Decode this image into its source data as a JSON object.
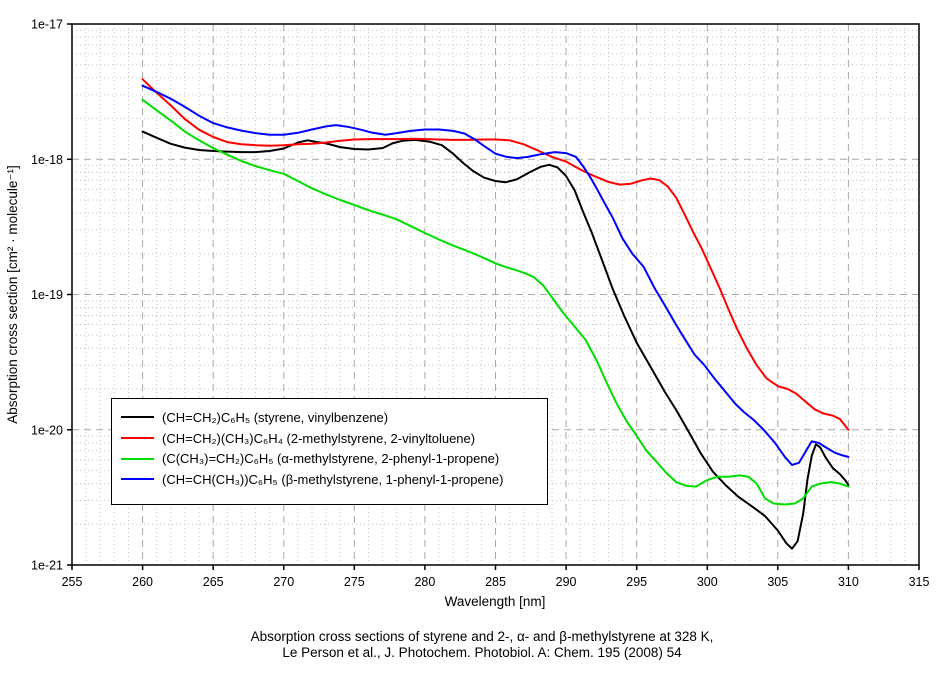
{
  "chart_data": {
    "type": "line",
    "title": "",
    "xlabel": "Wavelength [nm]",
    "ylabel": "Absorption cross section [cm² · molecule⁻¹]",
    "xlim": [
      255,
      315
    ],
    "ylim_exp": [
      -21,
      -17
    ],
    "x_ticks": [
      255,
      260,
      265,
      270,
      275,
      280,
      285,
      290,
      295,
      300,
      305,
      310,
      315
    ],
    "y_ticks": [
      "1e-17",
      "1e-18",
      "1e-19",
      "1e-20",
      "1e-21"
    ],
    "x_minor_step": 1,
    "grid": true,
    "legend_position": "lower-left",
    "grid_minor_color": "#c2c2c2",
    "grid_major_color": "#a8a8a8",
    "axis_color": "#000000",
    "series": [
      {
        "name": "styrene",
        "label": "(CH=CH₂)C₆H₅ (styrene, vinylbenzene)",
        "color": "#000000",
        "points": [
          [
            260,
            1.6e-18
          ],
          [
            261,
            1.44e-18
          ],
          [
            262,
            1.3e-18
          ],
          [
            263,
            1.22e-18
          ],
          [
            264,
            1.17e-18
          ],
          [
            265,
            1.15e-18
          ],
          [
            266,
            1.14e-18
          ],
          [
            267,
            1.13e-18
          ],
          [
            268,
            1.13e-18
          ],
          [
            269,
            1.15e-18
          ],
          [
            270,
            1.2e-18
          ],
          [
            271,
            1.33e-18
          ],
          [
            271.7,
            1.38e-18
          ],
          [
            272.4,
            1.34e-18
          ],
          [
            273,
            1.31e-18
          ],
          [
            274,
            1.23e-18
          ],
          [
            275,
            1.19e-18
          ],
          [
            276,
            1.18e-18
          ],
          [
            277,
            1.21e-18
          ],
          [
            277.7,
            1.31e-18
          ],
          [
            278.4,
            1.37e-18
          ],
          [
            279.3,
            1.39e-18
          ],
          [
            280.3,
            1.35e-18
          ],
          [
            281.2,
            1.27e-18
          ],
          [
            282,
            1.1e-18
          ],
          [
            282.7,
            9.4e-19
          ],
          [
            283.4,
            8.2e-19
          ],
          [
            284.2,
            7.3e-19
          ],
          [
            285,
            6.9e-19
          ],
          [
            285.7,
            6.75e-19
          ],
          [
            286.5,
            7.1e-19
          ],
          [
            287.4,
            8e-19
          ],
          [
            288.2,
            8.8e-19
          ],
          [
            288.8,
            9.1e-19
          ],
          [
            289.4,
            8.7e-19
          ],
          [
            290,
            7.5e-19
          ],
          [
            290.6,
            5.9e-19
          ],
          [
            291.2,
            4.1e-19
          ],
          [
            291.8,
            2.9e-19
          ],
          [
            292.5,
            1.85e-19
          ],
          [
            293.3,
            1.1e-19
          ],
          [
            294.1,
            7e-20
          ],
          [
            295,
            4.4e-20
          ],
          [
            296,
            2.9e-20
          ],
          [
            297,
            1.9e-20
          ],
          [
            297.8,
            1.4e-20
          ],
          [
            298.7,
            9.6e-21
          ],
          [
            299.5,
            6.8e-21
          ],
          [
            300.4,
            4.9e-21
          ],
          [
            301.3,
            3.9e-21
          ],
          [
            302.2,
            3.2e-21
          ],
          [
            303.2,
            2.7e-21
          ],
          [
            304.1,
            2.3e-21
          ],
          [
            305,
            1.8e-21
          ],
          [
            305.6,
            1.45e-21
          ],
          [
            306,
            1.32e-21
          ],
          [
            306.4,
            1.5e-21
          ],
          [
            306.8,
            2.4e-21
          ],
          [
            307.1,
            4.3e-21
          ],
          [
            307.4,
            6.4e-21
          ],
          [
            307.7,
            7.8e-21
          ],
          [
            308,
            7.4e-21
          ],
          [
            308.4,
            6.2e-21
          ],
          [
            308.9,
            5.2e-21
          ],
          [
            309.4,
            4.7e-21
          ],
          [
            309.8,
            4.2e-21
          ],
          [
            310,
            3.9e-21
          ]
        ]
      },
      {
        "name": "2-methylstyrene",
        "label": "(CH=CH₂)(CH₃)C₆H₄ (2-methylstyrene, 2-vinyltoluene)",
        "color": "#ff0000",
        "points": [
          [
            260,
            3.9e-18
          ],
          [
            261,
            3.1e-18
          ],
          [
            262,
            2.5e-18
          ],
          [
            263,
            1.98e-18
          ],
          [
            264,
            1.65e-18
          ],
          [
            265,
            1.46e-18
          ],
          [
            266,
            1.34e-18
          ],
          [
            267,
            1.29e-18
          ],
          [
            268,
            1.27e-18
          ],
          [
            269,
            1.26e-18
          ],
          [
            270,
            1.27e-18
          ],
          [
            271,
            1.29e-18
          ],
          [
            272,
            1.3e-18
          ],
          [
            273,
            1.33e-18
          ],
          [
            274,
            1.37e-18
          ],
          [
            275,
            1.4e-18
          ],
          [
            276,
            1.41e-18
          ],
          [
            277,
            1.41e-18
          ],
          [
            278,
            1.41e-18
          ],
          [
            279,
            1.42e-18
          ],
          [
            280,
            1.41e-18
          ],
          [
            281,
            1.4e-18
          ],
          [
            282,
            1.39e-18
          ],
          [
            283,
            1.39e-18
          ],
          [
            284,
            1.4e-18
          ],
          [
            285,
            1.4e-18
          ],
          [
            286,
            1.38e-18
          ],
          [
            287,
            1.29e-18
          ],
          [
            288,
            1.16e-18
          ],
          [
            289,
            1.04e-18
          ],
          [
            290,
            9.6e-19
          ],
          [
            291,
            8.4e-19
          ],
          [
            292,
            7.5e-19
          ],
          [
            293,
            6.8e-19
          ],
          [
            293.8,
            6.5e-19
          ],
          [
            294.6,
            6.6e-19
          ],
          [
            295.4,
            7e-19
          ],
          [
            296,
            7.2e-19
          ],
          [
            296.6,
            7e-19
          ],
          [
            297.2,
            6.3e-19
          ],
          [
            297.8,
            5.2e-19
          ],
          [
            298.4,
            3.9e-19
          ],
          [
            299,
            2.9e-19
          ],
          [
            299.6,
            2.2e-19
          ],
          [
            300.2,
            1.6e-19
          ],
          [
            300.9,
            1.1e-19
          ],
          [
            301.5,
            7.8e-20
          ],
          [
            302.1,
            5.6e-20
          ],
          [
            302.8,
            4e-20
          ],
          [
            303.5,
            3e-20
          ],
          [
            304.2,
            2.4e-20
          ],
          [
            305,
            2.1e-20
          ],
          [
            305.7,
            2e-20
          ],
          [
            306.3,
            1.85e-20
          ],
          [
            307,
            1.6e-20
          ],
          [
            307.6,
            1.42e-20
          ],
          [
            308.2,
            1.32e-20
          ],
          [
            308.9,
            1.27e-20
          ],
          [
            309.4,
            1.2e-20
          ],
          [
            310,
            1e-20
          ]
        ]
      },
      {
        "name": "alpha-methylstyrene",
        "label": "(C(CH₃)=CH₂)C₆H₅ (α-methylstyrene, 2-phenyl-1-propene)",
        "color": "#00dd00",
        "points": [
          [
            260,
            2.75e-18
          ],
          [
            261,
            2.3e-18
          ],
          [
            262,
            1.93e-18
          ],
          [
            263,
            1.6e-18
          ],
          [
            264,
            1.38e-18
          ],
          [
            265,
            1.21e-18
          ],
          [
            266,
            1.08e-18
          ],
          [
            267,
            9.7e-19
          ],
          [
            268,
            8.9e-19
          ],
          [
            269,
            8.3e-19
          ],
          [
            270,
            7.8e-19
          ],
          [
            271,
            6.9e-19
          ],
          [
            272,
            6.1e-19
          ],
          [
            273,
            5.5e-19
          ],
          [
            274,
            5e-19
          ],
          [
            275,
            4.6e-19
          ],
          [
            276,
            4.2e-19
          ],
          [
            277,
            3.9e-19
          ],
          [
            278,
            3.6e-19
          ],
          [
            279,
            3.2e-19
          ],
          [
            280,
            2.85e-19
          ],
          [
            281,
            2.55e-19
          ],
          [
            282,
            2.3e-19
          ],
          [
            283,
            2.1e-19
          ],
          [
            284,
            1.9e-19
          ],
          [
            285,
            1.7e-19
          ],
          [
            285.7,
            1.6e-19
          ],
          [
            286.4,
            1.52e-19
          ],
          [
            287,
            1.45e-19
          ],
          [
            287.7,
            1.35e-19
          ],
          [
            288.4,
            1.16e-19
          ],
          [
            289.1,
            9.2e-20
          ],
          [
            289.8,
            7.3e-20
          ],
          [
            290.6,
            5.8e-20
          ],
          [
            291.4,
            4.6e-20
          ],
          [
            292.2,
            3.2e-20
          ],
          [
            292.9,
            2.2e-20
          ],
          [
            293.6,
            1.55e-20
          ],
          [
            294.3,
            1.15e-20
          ],
          [
            295,
            9e-21
          ],
          [
            295.7,
            7e-21
          ],
          [
            296.4,
            5.8e-21
          ],
          [
            297.1,
            4.8e-21
          ],
          [
            297.8,
            4.1e-21
          ],
          [
            298.5,
            3.85e-21
          ],
          [
            299.2,
            3.8e-21
          ],
          [
            299.9,
            4.2e-21
          ],
          [
            300.7,
            4.5e-21
          ],
          [
            301.5,
            4.5e-21
          ],
          [
            302.3,
            4.6e-21
          ],
          [
            302.9,
            4.5e-21
          ],
          [
            303.5,
            4e-21
          ],
          [
            304.1,
            3.1e-21
          ],
          [
            304.7,
            2.85e-21
          ],
          [
            305.5,
            2.8e-21
          ],
          [
            306.2,
            2.85e-21
          ],
          [
            306.8,
            3.1e-21
          ],
          [
            307.4,
            3.8e-21
          ],
          [
            308,
            4e-21
          ],
          [
            308.8,
            4.1e-21
          ],
          [
            309.4,
            4e-21
          ],
          [
            310,
            3.8e-21
          ]
        ]
      },
      {
        "name": "beta-methylstyrene",
        "label": "(CH=CH(CH₃))C₆H₅ (β-methylstyrene, 1-phenyl-1-propene)",
        "color": "#0000ff",
        "points": [
          [
            260,
            3.5e-18
          ],
          [
            261,
            3.15e-18
          ],
          [
            262,
            2.8e-18
          ],
          [
            263,
            2.44e-18
          ],
          [
            264,
            2.1e-18
          ],
          [
            265,
            1.85e-18
          ],
          [
            266,
            1.72e-18
          ],
          [
            267,
            1.63e-18
          ],
          [
            268,
            1.56e-18
          ],
          [
            269,
            1.52e-18
          ],
          [
            270,
            1.52e-18
          ],
          [
            271,
            1.57e-18
          ],
          [
            272,
            1.66e-18
          ],
          [
            273,
            1.75e-18
          ],
          [
            273.7,
            1.79e-18
          ],
          [
            274.5,
            1.74e-18
          ],
          [
            275.5,
            1.65e-18
          ],
          [
            276.3,
            1.57e-18
          ],
          [
            277.2,
            1.52e-18
          ],
          [
            278,
            1.56e-18
          ],
          [
            279,
            1.62e-18
          ],
          [
            280,
            1.66e-18
          ],
          [
            281,
            1.66e-18
          ],
          [
            282,
            1.62e-18
          ],
          [
            282.8,
            1.55e-18
          ],
          [
            283.5,
            1.41e-18
          ],
          [
            284.2,
            1.25e-18
          ],
          [
            285,
            1.1e-18
          ],
          [
            285.8,
            1.04e-18
          ],
          [
            286.5,
            1.02e-18
          ],
          [
            287.3,
            1.04e-18
          ],
          [
            288.2,
            1.09e-18
          ],
          [
            289.2,
            1.13e-18
          ],
          [
            290,
            1.11e-18
          ],
          [
            290.7,
            1.04e-18
          ],
          [
            291.2,
            8.9e-19
          ],
          [
            291.7,
            7.4e-19
          ],
          [
            292.2,
            6e-19
          ],
          [
            292.7,
            4.8e-19
          ],
          [
            293.3,
            3.7e-19
          ],
          [
            294,
            2.6e-19
          ],
          [
            294.7,
            2e-19
          ],
          [
            295.5,
            1.6e-19
          ],
          [
            296.3,
            1.1e-19
          ],
          [
            297,
            8.3e-20
          ],
          [
            297.7,
            6.2e-20
          ],
          [
            298.4,
            4.7e-20
          ],
          [
            299.1,
            3.6e-20
          ],
          [
            299.8,
            3e-20
          ],
          [
            300.5,
            2.4e-20
          ],
          [
            301.3,
            1.9e-20
          ],
          [
            302,
            1.55e-20
          ],
          [
            302.6,
            1.35e-20
          ],
          [
            303.3,
            1.18e-20
          ],
          [
            304,
            1e-20
          ],
          [
            304.8,
            8e-21
          ],
          [
            305.5,
            6.3e-21
          ],
          [
            306,
            5.5e-21
          ],
          [
            306.5,
            5.7e-21
          ],
          [
            307,
            7e-21
          ],
          [
            307.4,
            8.2e-21
          ],
          [
            307.9,
            8e-21
          ],
          [
            308.4,
            7.4e-21
          ],
          [
            309,
            6.8e-21
          ],
          [
            309.5,
            6.5e-21
          ],
          [
            310,
            6.3e-21
          ]
        ]
      }
    ]
  },
  "caption": {
    "line1": "Absorption cross sections of styrene and 2-, α- and β-methylstyrene at 328 K,",
    "line2": "Le Person et al., J. Photochem. Photobiol. A: Chem. 195 (2008) 54"
  }
}
